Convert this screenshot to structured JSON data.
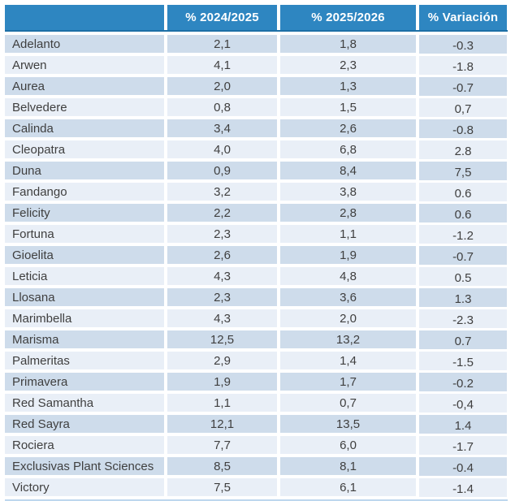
{
  "chart_data": {
    "type": "table",
    "title": "",
    "columns": [
      "",
      "% 2024/2025",
      "% 2025/2026",
      "% Variación"
    ],
    "rows": [
      [
        "Adelanto",
        "2,1",
        "1,8",
        "-0.3"
      ],
      [
        "Arwen",
        "4,1",
        "2,3",
        "-1.8"
      ],
      [
        "Aurea",
        "2,0",
        "1,3",
        "-0.7"
      ],
      [
        "Belvedere",
        "0,8",
        "1,5",
        "0,7"
      ],
      [
        "Calinda",
        "3,4",
        "2,6",
        "-0.8"
      ],
      [
        "Cleopatra",
        "4,0",
        "6,8",
        "2.8"
      ],
      [
        "Duna",
        "0,9",
        "8,4",
        "7,5"
      ],
      [
        "Fandango",
        "3,2",
        "3,8",
        "0.6"
      ],
      [
        "Felicity",
        "2,2",
        "2,8",
        "0.6"
      ],
      [
        "Fortuna",
        "2,3",
        "1,1",
        "-1.2"
      ],
      [
        "Gioelita",
        "2,6",
        "1,9",
        "-0.7"
      ],
      [
        "Leticia",
        "4,3",
        "4,8",
        "0.5"
      ],
      [
        "Llosana",
        "2,3",
        "3,6",
        "1.3"
      ],
      [
        "Marimbella",
        "4,3",
        "2,0",
        "-2.3"
      ],
      [
        "Marisma",
        "12,5",
        "13,2",
        "0.7"
      ],
      [
        "Palmeritas",
        "2,9",
        "1,4",
        "-1.5"
      ],
      [
        "Primavera",
        "1,9",
        "1,7",
        "-0.2"
      ],
      [
        "Red Samantha",
        "1,1",
        "0,7",
        "-0,4"
      ],
      [
        "Red Sayra",
        "12,1",
        "13,5",
        "1.4"
      ],
      [
        "Rociera",
        "7,7",
        "6,0",
        "-1.7"
      ],
      [
        "Exclusivas Plant Sciences",
        "8,5",
        "8,1",
        "-0.4"
      ],
      [
        "Victory",
        "7,5",
        "6,1",
        "-1.4"
      ]
    ]
  },
  "colors": {
    "header_bg": "#2e86c1",
    "header_border": "#1d6fa5",
    "header_text": "#ffffff",
    "row_dark": "#cedceb",
    "row_light": "#e9eff7",
    "text": "#3f3f3f",
    "bottom_border": "#bdd7ee"
  }
}
